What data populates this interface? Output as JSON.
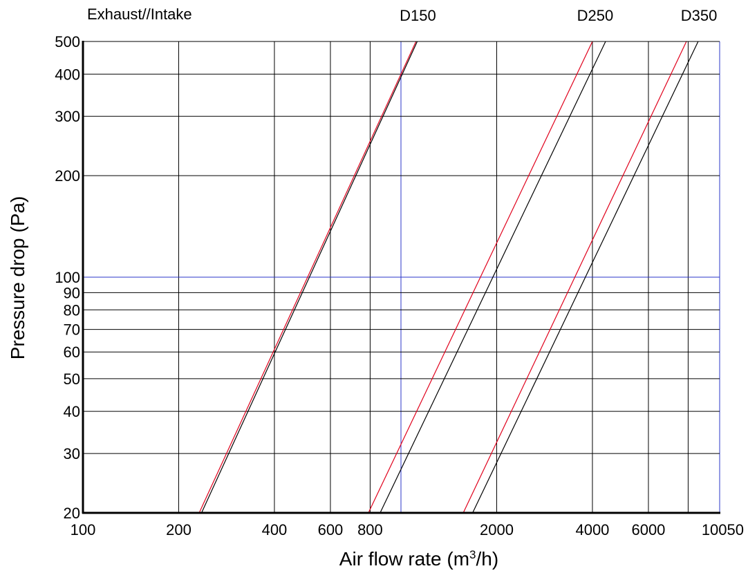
{
  "chart_data": {
    "type": "line",
    "title": "Exhaust//Intake",
    "xlabel": {
      "main": "Air flow rate (m",
      "sup": "3",
      "tail": "/h)"
    },
    "ylabel": "Pressure drop (Pa)",
    "x_scale": "log",
    "y_scale": "log",
    "xlim": [
      100,
      10050
    ],
    "ylim": [
      20,
      500
    ],
    "grid": true,
    "x_ticks": [
      {
        "value": 100,
        "label": "100"
      },
      {
        "value": 200,
        "label": "200"
      },
      {
        "value": 400,
        "label": "400"
      },
      {
        "value": 600,
        "label": "600"
      },
      {
        "value": 800,
        "label": "800"
      },
      {
        "value": 2000,
        "label": "2000"
      },
      {
        "value": 4000,
        "label": "4000"
      },
      {
        "value": 6000,
        "label": "6000"
      },
      {
        "value": 10050,
        "label": "10050"
      }
    ],
    "x_gridlines": [
      200,
      400,
      600,
      800,
      1000,
      2000,
      4000,
      6000,
      8000,
      10050
    ],
    "x_gridlines_blue": [
      1000,
      10050
    ],
    "y_ticks": [
      {
        "value": 20,
        "label": "20"
      },
      {
        "value": 30,
        "label": "30"
      },
      {
        "value": 40,
        "label": "40"
      },
      {
        "value": 50,
        "label": "50"
      },
      {
        "value": 60,
        "label": "60"
      },
      {
        "value": 70,
        "label": "70"
      },
      {
        "value": 80,
        "label": "80"
      },
      {
        "value": 90,
        "label": "90"
      },
      {
        "value": 100,
        "label": "100"
      },
      {
        "value": 200,
        "label": "200"
      },
      {
        "value": 300,
        "label": "300"
      },
      {
        "value": 400,
        "label": "400"
      },
      {
        "value": 500,
        "label": "500"
      }
    ],
    "y_gridlines_blue": [
      100
    ],
    "series": [
      {
        "color": "#e0001b",
        "points": [
          [
            232,
            20
          ],
          [
            1115,
            500
          ]
        ]
      },
      {
        "color": "#000000",
        "points": [
          [
            236,
            20
          ],
          [
            1125,
            500
          ]
        ]
      },
      {
        "color": "#e0001b",
        "points": [
          [
            790,
            20
          ],
          [
            4000,
            500
          ]
        ]
      },
      {
        "color": "#000000",
        "points": [
          [
            860,
            20
          ],
          [
            4400,
            500
          ]
        ]
      },
      {
        "color": "#e0001b",
        "points": [
          [
            1570,
            20
          ],
          [
            7900,
            500
          ]
        ]
      },
      {
        "color": "#000000",
        "points": [
          [
            1680,
            20
          ],
          [
            8600,
            500
          ]
        ]
      }
    ],
    "curve_labels": [
      {
        "text": "D150",
        "x": 1130
      },
      {
        "text": "D250",
        "x": 4080
      },
      {
        "text": "D350",
        "x": 8650
      }
    ]
  }
}
